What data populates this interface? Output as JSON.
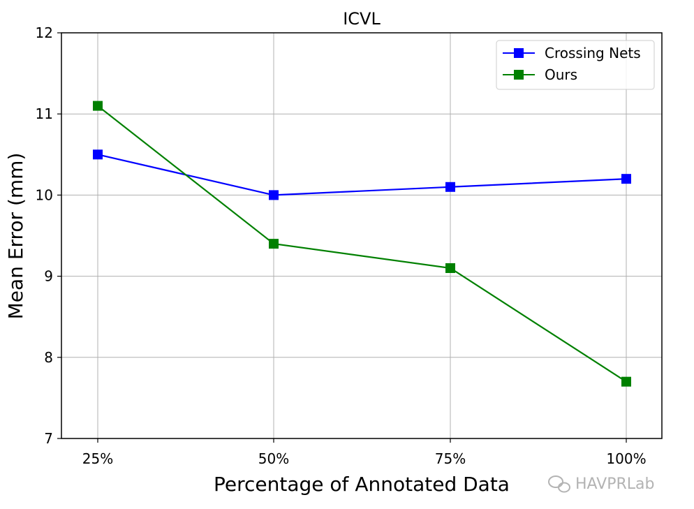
{
  "chart_data": {
    "type": "line",
    "title": "ICVL",
    "xlabel": "Percentage of Annotated Data",
    "ylabel": "Mean Error (mm)",
    "categories": [
      "25%",
      "50%",
      "75%",
      "100%"
    ],
    "ylim": [
      7,
      12
    ],
    "yticks": [
      7,
      8,
      9,
      10,
      11,
      12
    ],
    "grid": true,
    "legend_position": "top-right",
    "series": [
      {
        "name": "Crossing Nets",
        "color": "#0000ff",
        "marker": "square",
        "values": [
          10.5,
          10.0,
          10.1,
          10.2
        ]
      },
      {
        "name": "Ours",
        "color": "#008000",
        "marker": "square",
        "values": [
          11.1,
          9.4,
          9.1,
          7.7
        ]
      }
    ]
  },
  "watermark": {
    "text": "HAVPRLab",
    "icon": "wechat-icon"
  }
}
